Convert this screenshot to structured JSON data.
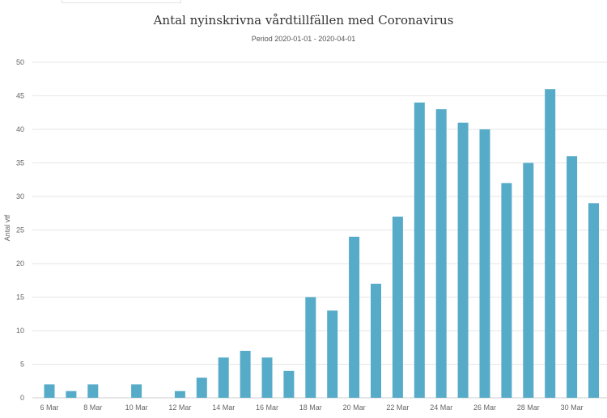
{
  "chart_data": {
    "type": "bar",
    "title": "Antal nyinskrivna vårdtillfällen med Coronavirus",
    "subtitle": "Period 2020-01-01 - 2020-04-01",
    "ylabel": "Antal vtf",
    "xlabel": "",
    "ylim": [
      0,
      50
    ],
    "yticks": [
      0,
      5,
      10,
      15,
      20,
      25,
      30,
      35,
      40,
      45,
      50
    ],
    "grid": true,
    "x_tick_labels": [
      "6 Mar",
      "8 Mar",
      "10 Mar",
      "12 Mar",
      "14 Mar",
      "16 Mar",
      "18 Mar",
      "20 Mar",
      "22 Mar",
      "24 Mar",
      "26 Mar",
      "28 Mar",
      "30 Mar"
    ],
    "categories": [
      "2020-03-06",
      "2020-03-07",
      "2020-03-08",
      "2020-03-09",
      "2020-03-10",
      "2020-03-11",
      "2020-03-12",
      "2020-03-13",
      "2020-03-14",
      "2020-03-15",
      "2020-03-16",
      "2020-03-17",
      "2020-03-18",
      "2020-03-19",
      "2020-03-20",
      "2020-03-21",
      "2020-03-22",
      "2020-03-23",
      "2020-03-24",
      "2020-03-25",
      "2020-03-26",
      "2020-03-27",
      "2020-03-28",
      "2020-03-29",
      "2020-03-30",
      "2020-03-31"
    ],
    "values": [
      2,
      1,
      2,
      0,
      2,
      0,
      1,
      3,
      6,
      7,
      6,
      4,
      15,
      13,
      24,
      17,
      27,
      44,
      43,
      41,
      40,
      32,
      35,
      46,
      36,
      29
    ],
    "colors": {
      "bar": "#56abc8",
      "grid": "#e6e6e6",
      "axis_text": "#666666"
    }
  }
}
